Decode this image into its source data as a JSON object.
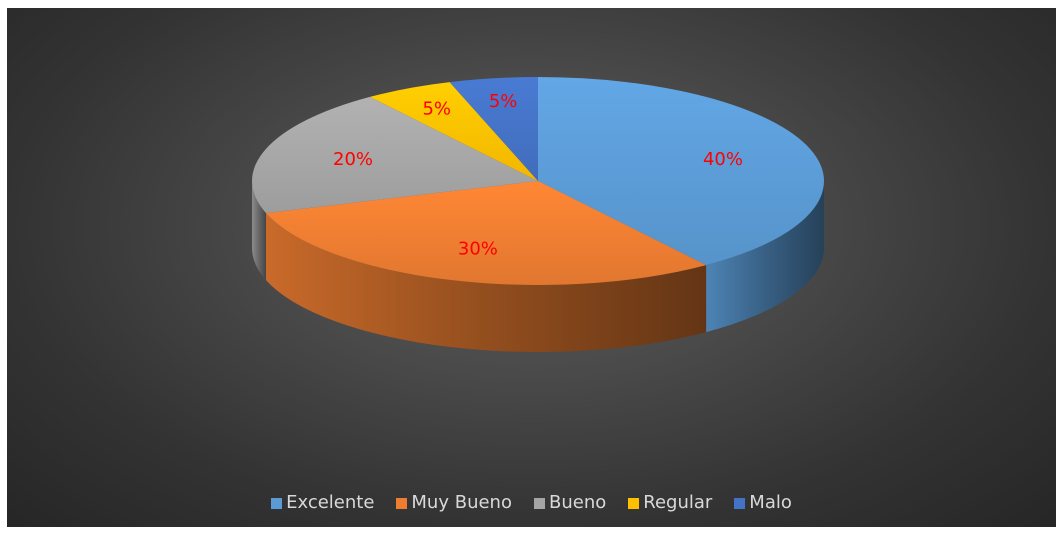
{
  "chart_data": {
    "type": "pie",
    "title": "",
    "categories": [
      "Excelente",
      "Muy Bueno",
      "Bueno",
      "Regular",
      "Malo"
    ],
    "values": [
      40,
      30,
      20,
      5,
      5
    ],
    "data_labels": [
      "40%",
      "30%",
      "20%",
      "5%",
      "5%"
    ],
    "colors": [
      "#5b9bd5",
      "#ed7d31",
      "#a5a5a5",
      "#ffc000",
      "#4472c4"
    ],
    "label_color": "#ff0000",
    "legend_position": "bottom",
    "style": "3d",
    "start_angle": "12 o'clock, clockwise"
  },
  "legend": {
    "items": [
      {
        "label": "Excelente",
        "color": "#5b9bd5"
      },
      {
        "label": "Muy Bueno",
        "color": "#ed7d31"
      },
      {
        "label": "Bueno",
        "color": "#a5a5a5"
      },
      {
        "label": "Regular",
        "color": "#ffc000"
      },
      {
        "label": "Malo",
        "color": "#4472c4"
      }
    ]
  }
}
